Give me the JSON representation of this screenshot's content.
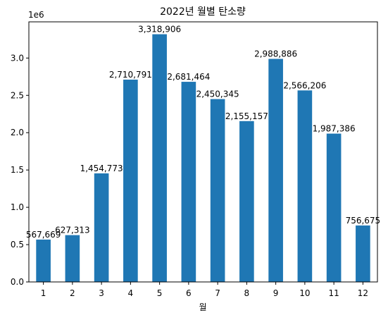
{
  "chart_data": {
    "type": "bar",
    "title": "2022년 월별 탄소량",
    "xlabel": "월",
    "ylabel": "",
    "y_offset_text": "1e6",
    "categories": [
      "1",
      "2",
      "3",
      "4",
      "5",
      "6",
      "7",
      "8",
      "9",
      "10",
      "11",
      "12"
    ],
    "values": [
      567669,
      627313,
      1454773,
      2710791,
      3318906,
      2681464,
      2450345,
      2155157,
      2988886,
      2566206,
      1987386,
      756675
    ],
    "value_labels": [
      "567,669",
      "627,313",
      "1,454,773",
      "2,710,791",
      "3,318,906",
      "2,681,464",
      "2,450,345",
      "2,155,157",
      "2,988,886",
      "2,566,206",
      "1,987,386",
      "756,675"
    ],
    "yticks": [
      0,
      500000,
      1000000,
      1500000,
      2000000,
      2500000,
      3000000
    ],
    "ytick_labels": [
      "0.0",
      "0.5",
      "1.0",
      "1.5",
      "2.0",
      "2.5",
      "3.0"
    ],
    "ylim": [
      0,
      3484851
    ],
    "bar_color": "#1f77b4",
    "grid": false,
    "legend": "none"
  }
}
